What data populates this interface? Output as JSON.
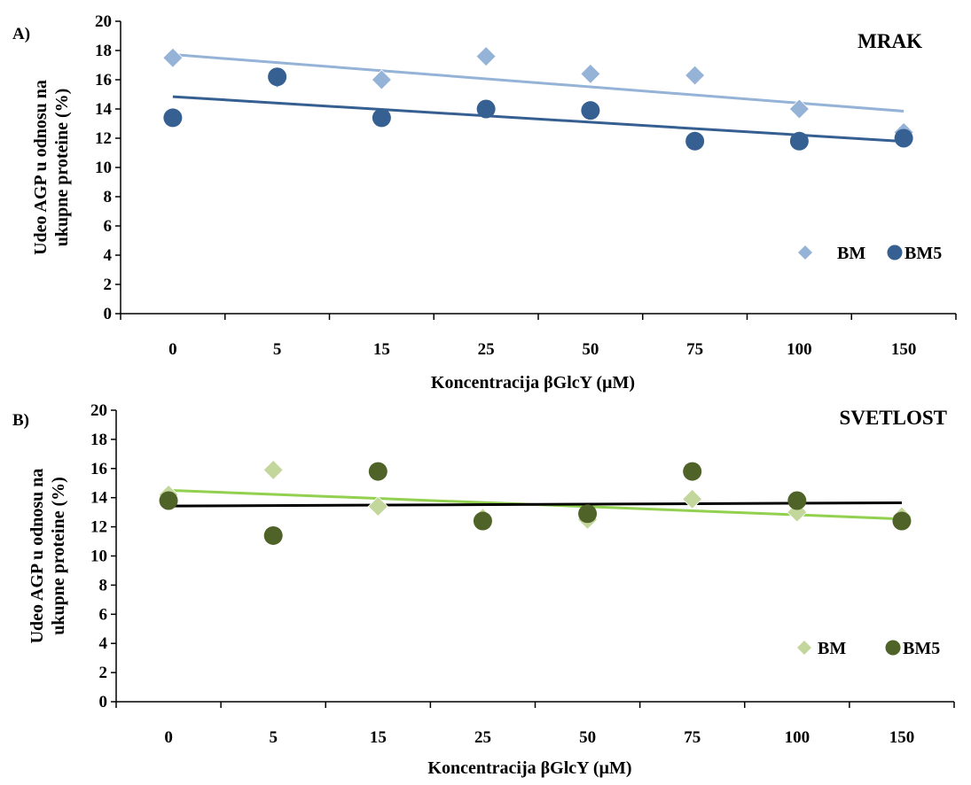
{
  "chart_data": [
    {
      "type": "scatter",
      "panel_label": "A)",
      "title": "MRAK",
      "xlabel": "Koncentracija βGlcY  (µM)",
      "ylabel_lines": [
        "Udeo AGP  u odnosu na",
        "ukupne proteine  (%)"
      ],
      "categories": [
        "0",
        "5",
        "15",
        "25",
        "50",
        "75",
        "100",
        "150"
      ],
      "ylim": [
        0,
        20
      ],
      "yticks": [
        0,
        2,
        4,
        6,
        8,
        10,
        12,
        14,
        16,
        18,
        20
      ],
      "legend_position": "bottom-right",
      "series": [
        {
          "name": "BM",
          "marker": "diamond",
          "color": "#95b3d7",
          "trend_color": "#95b3d7",
          "values": [
            17.5,
            16.1,
            16.0,
            17.6,
            16.4,
            16.3,
            14.0,
            12.4
          ]
        },
        {
          "name": "BM5",
          "marker": "circle",
          "color": "#376092",
          "trend_color": "#365f91",
          "values": [
            13.4,
            16.2,
            13.4,
            14.0,
            13.9,
            11.8,
            11.8,
            12.0
          ]
        }
      ]
    },
    {
      "type": "scatter",
      "panel_label": "B)",
      "title": "SVETLOST",
      "xlabel": "Koncentracija βGlcY (µM)",
      "ylabel_lines": [
        "Udeo AGP  u odnosu na",
        "ukupne proteine  (%)"
      ],
      "categories": [
        "0",
        "5",
        "15",
        "25",
        "50",
        "75",
        "100",
        "150"
      ],
      "ylim": [
        0,
        20
      ],
      "yticks": [
        0,
        2,
        4,
        6,
        8,
        10,
        12,
        14,
        16,
        18,
        20
      ],
      "legend_position": "bottom-right",
      "series": [
        {
          "name": "BM",
          "marker": "diamond",
          "color": "#c3d69b",
          "trend_color": "#92d050",
          "values": [
            14.2,
            15.9,
            13.4,
            12.6,
            12.5,
            13.9,
            13.0,
            12.7
          ]
        },
        {
          "name": "BM5",
          "marker": "circle",
          "color": "#4f6228",
          "trend_color": "#000000",
          "values": [
            13.8,
            11.4,
            15.8,
            12.4,
            12.9,
            15.8,
            13.8,
            12.4
          ]
        }
      ]
    }
  ]
}
